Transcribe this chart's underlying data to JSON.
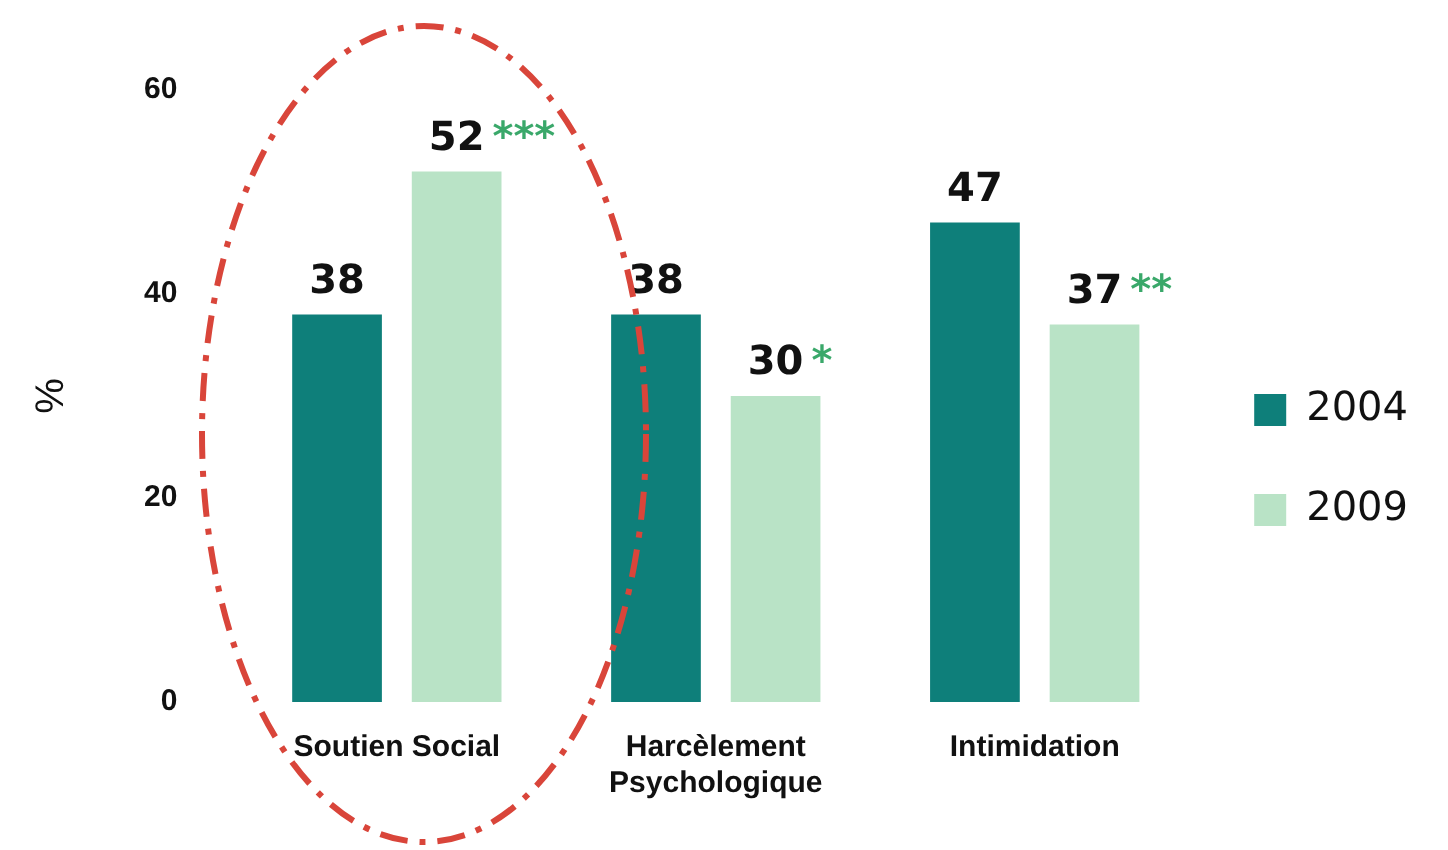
{
  "chart_data": {
    "type": "bar",
    "ylabel": "%",
    "categories": [
      "Soutien Social",
      "Harcèlement Psychologique",
      "Intimidation"
    ],
    "series": [
      {
        "name": "2004",
        "color": "#0e7f7a",
        "values": [
          38,
          38,
          47
        ]
      },
      {
        "name": "2009",
        "color": "#b9e3c6",
        "values": [
          52,
          30,
          37
        ]
      }
    ],
    "ylim": [
      0,
      60
    ],
    "yticks": [
      0,
      20,
      40,
      60
    ],
    "grid": false,
    "legend": "right",
    "data_labels": true,
    "annotations": [
      "***",
      "*",
      "**"
    ]
  }
}
